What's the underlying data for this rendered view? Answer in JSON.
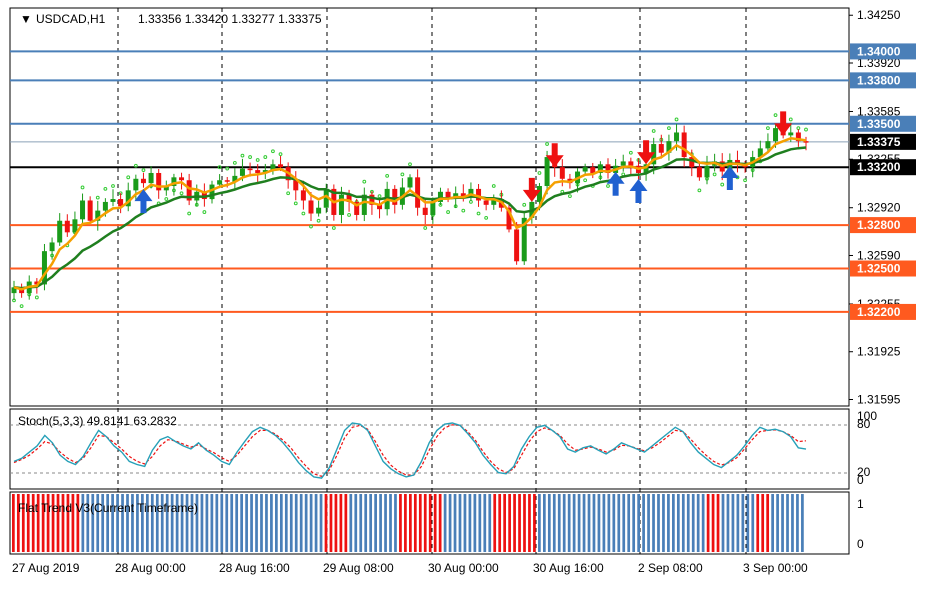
{
  "chart_data": {
    "type": "candlestick",
    "symbol_label": "USDCAD,H1",
    "ohlc_label": "1.33356 1.33420 1.33277 1.33375",
    "price_ticks": [
      "1.34250",
      "1.33920",
      "1.33585",
      "1.33255",
      "1.32920",
      "1.32590",
      "1.32255",
      "1.31925",
      "1.31595"
    ],
    "price_tick_values": [
      1.3425,
      1.3392,
      1.33585,
      1.33255,
      1.3292,
      1.3259,
      1.32255,
      1.31925,
      1.31595
    ],
    "ylim": [
      1.3155,
      1.343
    ],
    "time_labels": [
      "27 Aug 2019",
      "28 Aug 00:00",
      "28 Aug 16:00",
      "29 Aug 08:00",
      "30 Aug 00:00",
      "30 Aug 16:00",
      "2 Sep 08:00",
      "3 Sep 00:00"
    ],
    "levels": [
      {
        "label": "1.34000",
        "value": 1.34,
        "color": "#4a7fb8",
        "text_color": "#ffffff"
      },
      {
        "label": "1.33800",
        "value": 1.338,
        "color": "#4a7fb8",
        "text_color": "#ffffff"
      },
      {
        "label": "1.33500",
        "value": 1.335,
        "color": "#4a7fb8",
        "text_color": "#ffffff"
      },
      {
        "label": "1.33375",
        "value": 1.33375,
        "color": "#000000",
        "text_color": "#ffffff"
      },
      {
        "label": "1.33200",
        "value": 1.332,
        "color": "#000000",
        "text_color": "#ffffff"
      },
      {
        "label": "1.32800",
        "value": 1.328,
        "color": "#ff5a1f",
        "text_color": "#ffffff"
      },
      {
        "label": "1.32500",
        "value": 1.325,
        "color": "#ff5a1f",
        "text_color": "#ffffff"
      },
      {
        "label": "1.32200",
        "value": 1.322,
        "color": "#ff5a1f",
        "text_color": "#ffffff"
      }
    ],
    "close_path": [
      1.3237,
      1.3233,
      1.3241,
      1.3239,
      1.3262,
      1.3268,
      1.3283,
      1.3275,
      1.3284,
      1.3297,
      1.3283,
      1.329,
      1.3296,
      1.3298,
      1.3293,
      1.3304,
      1.3312,
      1.3309,
      1.3316,
      1.3304,
      1.3307,
      1.3313,
      1.3311,
      1.3297,
      1.3303,
      1.3298,
      1.3308,
      1.3311,
      1.331,
      1.3314,
      1.3319,
      1.3318,
      1.3316,
      1.3318,
      1.3322,
      1.332,
      1.3311,
      1.3304,
      1.3297,
      1.3288,
      1.3292,
      1.3305,
      1.3287,
      1.3301,
      1.3296,
      1.3287,
      1.3301,
      1.3294,
      1.3291,
      1.3305,
      1.3294,
      1.3306,
      1.3313,
      1.3292,
      1.3287,
      1.3296,
      1.3303,
      1.3298,
      1.3302,
      1.3299,
      1.3305,
      1.3297,
      1.3294,
      1.3298,
      1.3292,
      1.3277,
      1.3255,
      1.3285,
      1.3296,
      1.3307,
      1.3327,
      1.332,
      1.3312,
      1.3309,
      1.3317,
      1.332,
      1.3316,
      1.3322,
      1.3316,
      1.3321,
      1.3324,
      1.3321,
      1.3316,
      1.3322,
      1.3336,
      1.333,
      1.3338,
      1.3344,
      1.3327,
      1.332,
      1.3313,
      1.3321,
      1.3324,
      1.3317,
      1.3325,
      1.3322,
      1.332,
      1.3327,
      1.3333,
      1.3338,
      1.3347,
      1.3342,
      1.3344,
      1.3338,
      1.3337
    ],
    "stoch_label": "Stoch(5,3,3) 49.8141 63.2832",
    "stoch_levels": [
      "100",
      "80",
      "20",
      "0"
    ],
    "stoch_main": [
      30,
      35,
      45,
      55,
      72,
      60,
      40,
      30,
      25,
      38,
      60,
      80,
      70,
      55,
      45,
      30,
      25,
      22,
      48,
      65,
      70,
      62,
      55,
      50,
      60,
      48,
      40,
      30,
      25,
      45,
      62,
      78,
      85,
      80,
      72,
      60,
      45,
      28,
      15,
      5,
      3,
      20,
      50,
      80,
      92,
      90,
      80,
      55,
      30,
      18,
      10,
      5,
      8,
      30,
      60,
      80,
      90,
      92,
      88,
      75,
      60,
      40,
      25,
      12,
      10,
      22,
      50,
      70,
      85,
      88,
      80,
      70,
      50,
      45,
      52,
      55,
      48,
      42,
      50,
      60,
      55,
      50,
      45,
      55,
      65,
      75,
      85,
      78,
      60,
      45,
      35,
      25,
      20,
      30,
      40,
      55,
      72,
      85,
      80,
      82,
      78,
      70,
      52,
      49.8
    ],
    "stoch_signal": [
      28,
      33,
      40,
      50,
      62,
      58,
      45,
      35,
      28,
      35,
      52,
      72,
      70,
      60,
      50,
      38,
      30,
      26,
      38,
      55,
      65,
      63,
      58,
      53,
      57,
      50,
      44,
      36,
      30,
      40,
      55,
      70,
      80,
      80,
      74,
      64,
      52,
      36,
      22,
      10,
      6,
      16,
      40,
      68,
      85,
      88,
      82,
      62,
      40,
      24,
      14,
      8,
      8,
      22,
      48,
      70,
      84,
      89,
      88,
      78,
      64,
      46,
      30,
      18,
      12,
      18,
      40,
      62,
      78,
      84,
      80,
      72,
      58,
      48,
      50,
      53,
      50,
      45,
      48,
      56,
      55,
      51,
      47,
      52,
      60,
      70,
      80,
      78,
      66,
      52,
      40,
      30,
      24,
      28,
      36,
      50,
      65,
      78,
      80,
      81,
      78,
      72,
      62,
      63.3
    ],
    "flat_label": "Flat Trend V3(Current Timeframe)",
    "flat_levels": [
      "1",
      "0"
    ],
    "flat_blocks": [
      {
        "from": 0,
        "to": 14,
        "color": "#ee1111"
      },
      {
        "from": 14,
        "to": 63,
        "color": "#4a7fb8"
      },
      {
        "from": 63,
        "to": 68,
        "color": "#ee1111"
      },
      {
        "from": 68,
        "to": 78,
        "color": "#4a7fb8"
      },
      {
        "from": 78,
        "to": 87,
        "color": "#ee1111"
      },
      {
        "from": 87,
        "to": 97,
        "color": "#4a7fb8"
      },
      {
        "from": 97,
        "to": 106,
        "color": "#ee1111"
      },
      {
        "from": 106,
        "to": 140,
        "color": "#4a7fb8"
      },
      {
        "from": 140,
        "to": 143,
        "color": "#ee1111"
      },
      {
        "from": 143,
        "to": 150,
        "color": "#4a7fb8"
      },
      {
        "from": 150,
        "to": 153,
        "color": "#ee1111"
      },
      {
        "from": 153,
        "to": 160,
        "color": "#4a7fb8"
      }
    ],
    "arrows_up": [
      17,
      79,
      82,
      94,
      111
    ],
    "arrows_down": [
      68,
      71,
      83,
      101
    ],
    "colors": {
      "bull": "#1a9b1a",
      "bear": "#ee1111",
      "ma_fast": "#f5a000",
      "ma_slow": "#1f7f1f",
      "psar": "#33cc33",
      "stoch_main": "#26a0b8",
      "stoch_signal": "#ee1111",
      "arrow_up": "#2060d0",
      "arrow_down": "#ee1111"
    }
  }
}
